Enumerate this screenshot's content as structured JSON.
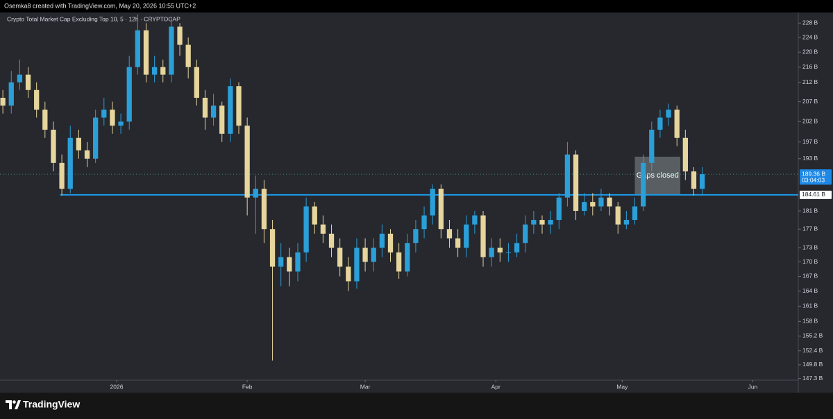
{
  "header": {
    "credit": "Osemka8 created with TradingView.com, May 20, 2026 10:55 UTC+2",
    "chart_label": "Crypto Total Market Cap Excluding Top 10, 5 · 12h · CRYPTOCAP"
  },
  "chart_data": {
    "type": "candlestick",
    "log_scale": true,
    "xlim": [
      -0.34,
      94.4
    ],
    "ylim": [
      147,
      231
    ],
    "xticks": [
      {
        "value": 13.5,
        "label": "2026"
      },
      {
        "value": 29,
        "label": "Feb"
      },
      {
        "value": 43,
        "label": "Mar"
      },
      {
        "value": 58.5,
        "label": "Apr"
      },
      {
        "value": 73.5,
        "label": "May"
      },
      {
        "value": 89,
        "label": "Jun"
      }
    ],
    "yticks": [
      {
        "value": 228,
        "label": "228 B"
      },
      {
        "value": 224,
        "label": "224 B"
      },
      {
        "value": 220,
        "label": "220 B"
      },
      {
        "value": 216,
        "label": "216 B"
      },
      {
        "value": 212,
        "label": "212 B"
      },
      {
        "value": 207,
        "label": "207 B"
      },
      {
        "value": 202,
        "label": "202 B"
      },
      {
        "value": 197,
        "label": "197 B"
      },
      {
        "value": 193,
        "label": "193 B"
      },
      {
        "value": 181,
        "label": "181 B"
      },
      {
        "value": 177,
        "label": "177 B"
      },
      {
        "value": 173,
        "label": "173 B"
      },
      {
        "value": 170,
        "label": "170 B"
      },
      {
        "value": 167,
        "label": "167 B"
      },
      {
        "value": 164,
        "label": "164 B"
      },
      {
        "value": 161,
        "label": "161 B"
      },
      {
        "value": 158,
        "label": "158 B"
      },
      {
        "value": 155.2,
        "label": "155.2 B"
      },
      {
        "value": 152.4,
        "label": "152.4 B"
      },
      {
        "value": 149.8,
        "label": "149.8 B"
      },
      {
        "value": 147.3,
        "label": "147.3 B"
      }
    ],
    "up_color": "#2b9fd8",
    "down_color": "#e6d59c",
    "series": [
      {
        "open": [
          208,
          206,
          212,
          214,
          210,
          205,
          200,
          192,
          186,
          198,
          195,
          193,
          203,
          205,
          201,
          202,
          216,
          226,
          214,
          216,
          214,
          227,
          222,
          216,
          208,
          203,
          206,
          199,
          211,
          201,
          184,
          186,
          177,
          169,
          171,
          168,
          172,
          182,
          178,
          176,
          173,
          169,
          166,
          173,
          170,
          173,
          176,
          172,
          168,
          174,
          177,
          180,
          186,
          177,
          175,
          173,
          178,
          180,
          171,
          173,
          172,
          172,
          174,
          178,
          179,
          178,
          179,
          184,
          194,
          181,
          183,
          182,
          184,
          182,
          178,
          179,
          182,
          192,
          200,
          203,
          205,
          198,
          190,
          186
        ],
        "high": [
          210,
          215,
          218,
          216,
          212,
          207,
          202,
          194,
          201,
          200,
          197,
          205,
          208,
          207,
          204,
          219,
          230.5,
          228,
          219,
          218,
          229.5,
          228,
          224,
          218,
          210,
          209,
          207,
          213,
          212,
          203,
          189,
          188,
          179,
          174,
          173,
          174,
          184,
          183,
          180,
          178,
          175,
          171,
          175,
          175,
          175,
          178,
          177,
          174,
          176,
          179,
          182,
          187,
          187,
          179,
          177,
          180,
          181,
          181,
          175,
          175,
          174,
          176,
          180,
          181,
          180,
          181,
          185,
          197,
          195,
          185,
          185,
          186,
          185,
          183,
          181,
          184,
          194,
          202,
          205,
          206.5,
          206,
          200,
          191,
          191
        ],
        "low": [
          204,
          204,
          210,
          208,
          203,
          198,
          190,
          184.5,
          185,
          193,
          191,
          192,
          201,
          199,
          199,
          200,
          214,
          212,
          212,
          212,
          212,
          219,
          213,
          206,
          200,
          201,
          197,
          197,
          199,
          180,
          176,
          174,
          150.6,
          165,
          165,
          166,
          170,
          176,
          174,
          171,
          167,
          164,
          164.5,
          168,
          168,
          171,
          170,
          166.5,
          167,
          172,
          175,
          178,
          175,
          173,
          171,
          171,
          176,
          169,
          169,
          170,
          170,
          171,
          172,
          176,
          176,
          176,
          177,
          182,
          179,
          180,
          180,
          181,
          180,
          176,
          177,
          178,
          181,
          190,
          198,
          201,
          196,
          188,
          184.5,
          184.5
        ],
        "close": [
          206,
          212,
          214,
          210,
          205,
          200,
          192,
          186,
          198,
          195,
          193,
          203,
          205,
          201,
          202,
          216,
          226,
          214,
          216,
          214,
          227,
          222,
          216,
          208,
          203,
          206,
          199,
          211,
          201,
          184,
          186,
          177,
          169,
          171,
          168,
          172,
          182,
          178,
          176,
          173,
          169,
          166,
          173,
          170,
          173,
          176,
          172,
          168,
          174,
          177,
          180,
          186,
          177,
          175,
          173,
          178,
          180,
          171,
          173,
          172,
          172,
          174,
          178,
          179,
          178,
          179,
          184,
          194,
          181,
          183,
          182,
          184,
          182,
          178,
          179,
          182,
          192,
          200,
          203,
          205,
          198,
          190,
          186,
          189.36
        ]
      }
    ],
    "last_price": {
      "value": 189.36,
      "label": "189.36 B",
      "countdown": "03:04:03",
      "color": "#1e88e5"
    },
    "level": {
      "value": 184.61,
      "label": "184.61 B",
      "color": "#1e9be9"
    },
    "annotation": {
      "text": "Gaps closed"
    }
  },
  "footer": {
    "brand": "TradingView"
  }
}
